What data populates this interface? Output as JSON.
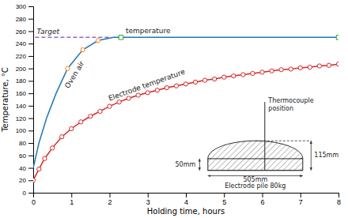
{
  "chart_data": {
    "type": "line",
    "xlabel": "Holding time, hours",
    "ylabel": "Temperature, °C",
    "xlim": [
      0,
      8
    ],
    "ylim": [
      0,
      300
    ],
    "xticks": [
      0,
      1,
      2,
      3,
      4,
      5,
      6,
      7,
      8
    ],
    "yticks": [
      0,
      20,
      40,
      60,
      80,
      100,
      120,
      140,
      160,
      180,
      200,
      220,
      240,
      260,
      280,
      300
    ],
    "series": [
      {
        "type": "line",
        "line_style": "solid",
        "x": [
          0.0,
          0.15,
          0.35,
          0.6,
          0.9,
          1.3,
          1.7,
          2.1,
          2.3,
          2.5,
          3.0,
          4.0,
          5.0,
          6.0,
          7.0,
          8.0
        ],
        "values": [
          40,
          80,
          120,
          160,
          200,
          230,
          245,
          250,
          250,
          250,
          250,
          250,
          250,
          250,
          250,
          250
        ]
      },
      {
        "type": "scatter",
        "marker": "circle",
        "x": [
          0.9,
          1.3,
          1.7
        ],
        "values": [
          200,
          230,
          245
        ]
      },
      {
        "type": "scatter",
        "marker": "square",
        "x": [
          2.3,
          8.0
        ],
        "values": [
          250,
          250
        ]
      },
      {
        "type": "line",
        "line_style": "solid",
        "marker": "circle",
        "x": [
          0,
          0.15,
          0.3,
          0.5,
          0.75,
          1.0,
          1.25,
          1.5,
          1.75,
          2.0,
          2.25,
          2.5,
          2.75,
          3.0,
          3.25,
          3.5,
          3.75,
          4.0,
          4.25,
          4.5,
          4.75,
          5.0,
          5.25,
          5.5,
          5.75,
          6.0,
          6.25,
          6.5,
          6.75,
          7.0,
          7.25,
          7.5,
          7.75,
          8.0
        ],
        "values": [
          20,
          38,
          55,
          72,
          90,
          103,
          114,
          123,
          131,
          139,
          146,
          152,
          157,
          161,
          165,
          169,
          172,
          175,
          178,
          181,
          183,
          186,
          188,
          190,
          192,
          194,
          196,
          198,
          199,
          201,
          202,
          204,
          205,
          207
        ]
      },
      {
        "type": "line",
        "line_style": "dashed",
        "x": [
          0.05,
          2.05
        ],
        "values": [
          250,
          250
        ]
      }
    ],
    "annotations": [
      "Target",
      "Oven air",
      "temperature",
      "Electrode temperature",
      "50mm",
      "115mm",
      "505mm",
      "Electrode pile 80kg",
      "Thermocouple",
      "position"
    ]
  }
}
